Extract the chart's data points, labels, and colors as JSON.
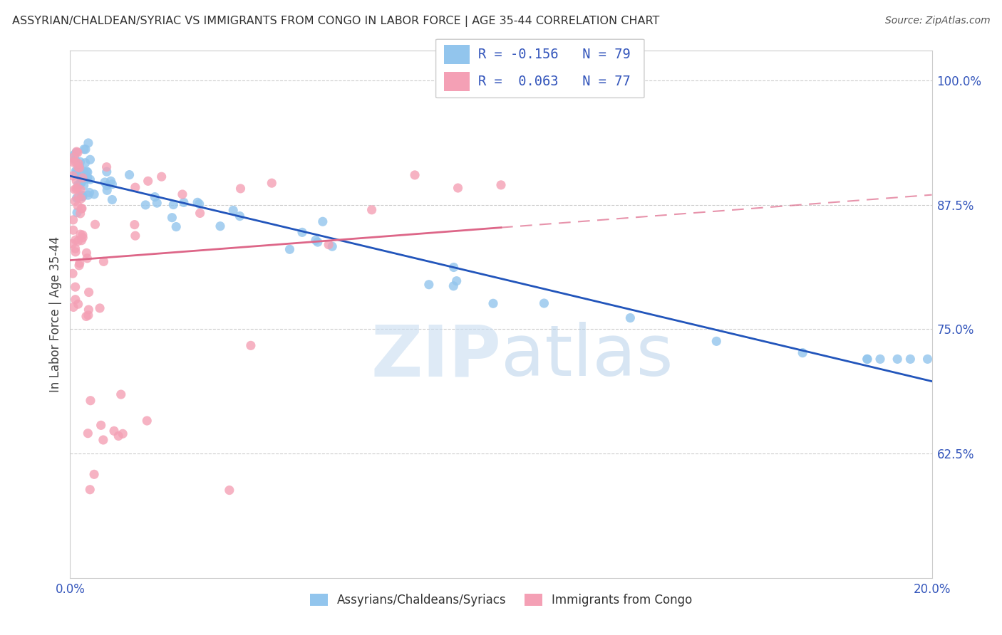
{
  "title": "ASSYRIAN/CHALDEAN/SYRIAC VS IMMIGRANTS FROM CONGO IN LABOR FORCE | AGE 35-44 CORRELATION CHART",
  "source_text": "Source: ZipAtlas.com",
  "ylabel": "In Labor Force | Age 35-44",
  "xlim": [
    0.0,
    0.2
  ],
  "ylim": [
    0.5,
    1.03
  ],
  "ytick_positions": [
    0.625,
    0.75,
    0.875,
    1.0
  ],
  "ytick_labels": [
    "62.5%",
    "75.0%",
    "87.5%",
    "100.0%"
  ],
  "legend_blue_r": "-0.156",
  "legend_blue_n": "79",
  "legend_pink_r": "0.063",
  "legend_pink_n": "77",
  "legend_blue_label": "Assyrians/Chaldeans/Syriacs",
  "legend_pink_label": "Immigrants from Congo",
  "blue_color": "#92C5ED",
  "pink_color": "#F4A0B5",
  "blue_line_color": "#2255BB",
  "pink_line_color": "#DD6688",
  "watermark_zip": "ZIP",
  "watermark_atlas": "atlas"
}
